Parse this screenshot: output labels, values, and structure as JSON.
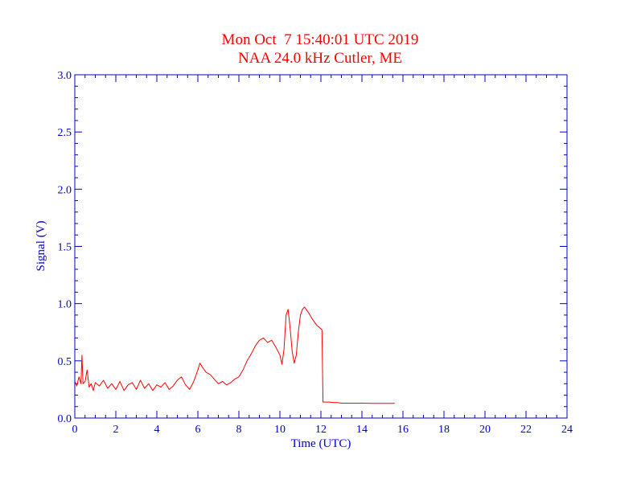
{
  "chart_data": {
    "type": "line",
    "title": "Mon Oct  7 15:40:01 UTC 2019",
    "subtitle": "NAA 24.0 kHz Cutler, ME",
    "xlabel": "Time (UTC)",
    "ylabel": "Signal (V)",
    "xlim": [
      0,
      24
    ],
    "ylim": [
      0,
      3.0
    ],
    "xticks": [
      0,
      2,
      4,
      6,
      8,
      10,
      12,
      14,
      16,
      18,
      20,
      22,
      24
    ],
    "yticks": [
      "0.0",
      "0.5",
      "1.0",
      "1.5",
      "2.0",
      "2.5",
      "3.0"
    ],
    "grid": false,
    "colors": {
      "axis": "#0000cc",
      "title": "#ff0000",
      "series": "#ff0000"
    },
    "series": [
      {
        "x": [
          0.0,
          0.1,
          0.2,
          0.3,
          0.35,
          0.4,
          0.5,
          0.6,
          0.7,
          0.8,
          0.9,
          1.0,
          1.2,
          1.4,
          1.6,
          1.8,
          2.0,
          2.2,
          2.4,
          2.6,
          2.8,
          3.0,
          3.2,
          3.4,
          3.6,
          3.8,
          4.0,
          4.2,
          4.4,
          4.6,
          4.8,
          5.0,
          5.2,
          5.4,
          5.6,
          5.8,
          6.0,
          6.1,
          6.2,
          6.4,
          6.6,
          6.8,
          7.0,
          7.2,
          7.4,
          7.6,
          7.8,
          8.0,
          8.2,
          8.4,
          8.6,
          8.8,
          9.0,
          9.2,
          9.4,
          9.6,
          9.8,
          10.0,
          10.1,
          10.2,
          10.3,
          10.4,
          10.5,
          10.6,
          10.7,
          10.8,
          10.9,
          11.0,
          11.1,
          11.2,
          11.4,
          11.6,
          11.8,
          12.0,
          12.05,
          12.1,
          12.2,
          12.4,
          12.6,
          12.8,
          13.0,
          13.5,
          14.0,
          14.5,
          15.0,
          15.5,
          15.6
        ],
        "y": [
          0.32,
          0.28,
          0.36,
          0.3,
          0.55,
          0.3,
          0.32,
          0.42,
          0.27,
          0.3,
          0.24,
          0.31,
          0.28,
          0.33,
          0.26,
          0.3,
          0.25,
          0.32,
          0.24,
          0.29,
          0.31,
          0.25,
          0.33,
          0.26,
          0.3,
          0.24,
          0.29,
          0.27,
          0.31,
          0.25,
          0.28,
          0.33,
          0.36,
          0.29,
          0.25,
          0.32,
          0.42,
          0.48,
          0.45,
          0.4,
          0.38,
          0.34,
          0.3,
          0.32,
          0.29,
          0.31,
          0.34,
          0.36,
          0.42,
          0.5,
          0.56,
          0.63,
          0.68,
          0.7,
          0.66,
          0.68,
          0.62,
          0.55,
          0.47,
          0.6,
          0.9,
          0.95,
          0.78,
          0.58,
          0.48,
          0.55,
          0.75,
          0.9,
          0.95,
          0.97,
          0.92,
          0.86,
          0.81,
          0.78,
          0.77,
          0.14,
          0.14,
          0.14,
          0.135,
          0.135,
          0.13,
          0.13,
          0.13,
          0.128,
          0.128,
          0.128,
          0.13
        ]
      }
    ]
  }
}
